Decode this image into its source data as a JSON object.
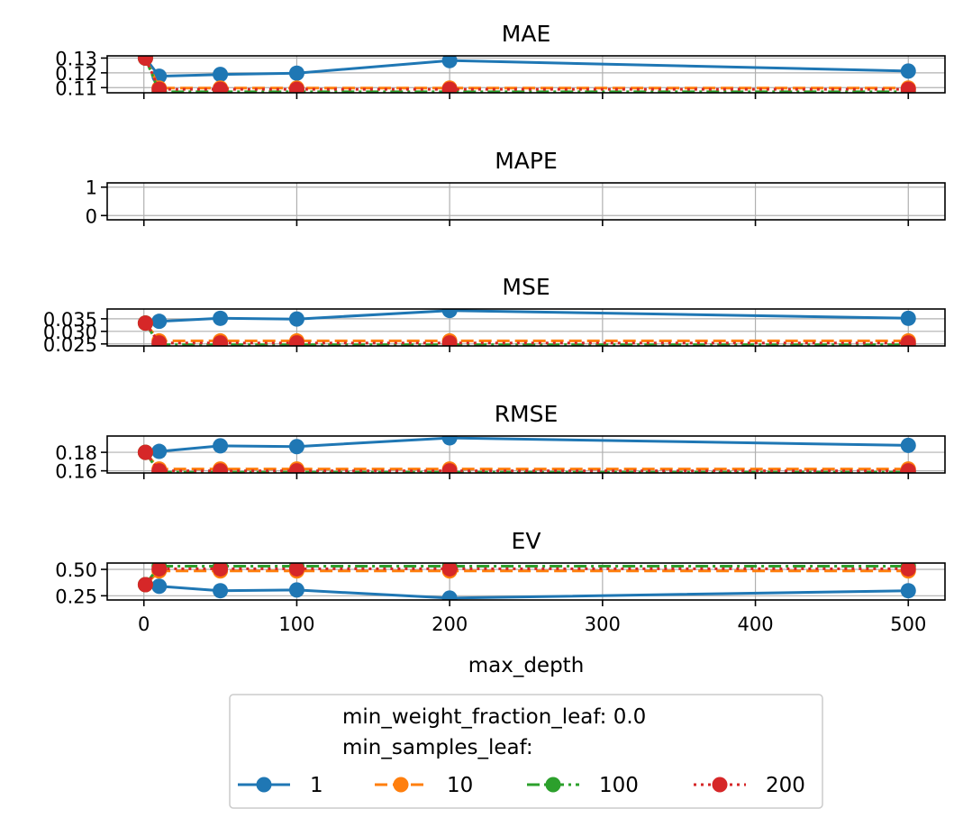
{
  "chart_data": {
    "type": "line",
    "xlabel": "max_depth",
    "x": [
      1,
      10,
      50,
      100,
      200,
      500
    ],
    "xlim": [
      -24,
      524
    ],
    "xticks": [
      0,
      100,
      200,
      300,
      400,
      500
    ],
    "xtick_labels": [
      "0",
      "100",
      "200",
      "300",
      "400",
      "500"
    ],
    "grid": true,
    "legend": {
      "placement": "bottom-center",
      "title_line1": "min_weight_fraction_leaf: 0.0",
      "title_line2": "min_samples_leaf:",
      "entries": [
        {
          "label": "1",
          "color": "#1f77b4",
          "style": "solid"
        },
        {
          "label": "10",
          "color": "#ff7f0e",
          "style": "dashed"
        },
        {
          "label": "100",
          "color": "#2ca02c",
          "style": "dashdot"
        },
        {
          "label": "200",
          "color": "#d62728",
          "style": "dotted"
        }
      ]
    },
    "panels": [
      {
        "title": "MAE",
        "ylim": [
          0.1065,
          0.1315
        ],
        "yticks": [
          0.11,
          0.12,
          0.13
        ],
        "ytick_labels": [
          "0.11",
          "0.12",
          "0.13"
        ],
        "series": [
          {
            "name": "1",
            "values": [
              0.13,
              0.1177,
              0.1189,
              0.1198,
              0.1283,
              0.1212
            ]
          },
          {
            "name": "10",
            "values": [
              0.13,
              0.1097,
              0.1097,
              0.1097,
              0.1097,
              0.1097
            ]
          },
          {
            "name": "100",
            "values": [
              0.13,
              0.1072,
              0.1072,
              0.1072,
              0.1072,
              0.1072
            ]
          },
          {
            "name": "200",
            "values": [
              0.13,
              0.1089,
              0.1089,
              0.1089,
              0.1089,
              0.1089
            ]
          }
        ]
      },
      {
        "title": "MAPE",
        "ylim": [
          -0.15,
          1.15
        ],
        "yticks": [
          0,
          1
        ],
        "ytick_labels": [
          "0",
          "1"
        ],
        "series": [
          {
            "name": "1",
            "values": []
          },
          {
            "name": "10",
            "values": []
          },
          {
            "name": "100",
            "values": []
          },
          {
            "name": "200",
            "values": []
          }
        ]
      },
      {
        "title": "MSE",
        "ylim": [
          0.0242,
          0.0389
        ],
        "yticks": [
          0.025,
          0.03,
          0.035
        ],
        "ytick_labels": [
          "0.025",
          "0.030",
          "0.035"
        ],
        "series": [
          {
            "name": "1",
            "values": [
              0.0333,
              0.034,
              0.0352,
              0.0349,
              0.0383,
              0.0352
            ]
          },
          {
            "name": "10",
            "values": [
              0.0333,
              0.0262,
              0.0262,
              0.0262,
              0.0262,
              0.0262
            ]
          },
          {
            "name": "100",
            "values": [
              0.0333,
              0.0247,
              0.0247,
              0.0247,
              0.0247,
              0.0247
            ]
          },
          {
            "name": "200",
            "values": [
              0.0333,
              0.0254,
              0.0254,
              0.0254,
              0.0254,
              0.0254
            ]
          }
        ]
      },
      {
        "title": "RMSE",
        "ylim": [
          0.1577,
          0.1976
        ],
        "yticks": [
          0.16,
          0.18
        ],
        "ytick_labels": [
          "0.16",
          "0.18"
        ],
        "series": [
          {
            "name": "1",
            "values": [
              0.18,
              0.181,
              0.187,
              0.1862,
              0.1956,
              0.1875
            ]
          },
          {
            "name": "10",
            "values": [
              0.18,
              0.162,
              0.162,
              0.162,
              0.162,
              0.162
            ]
          },
          {
            "name": "100",
            "values": [
              0.18,
              0.1585,
              0.1585,
              0.1585,
              0.1585,
              0.1585
            ]
          },
          {
            "name": "200",
            "values": [
              0.18,
              0.16,
              0.16,
              0.16,
              0.16,
              0.16
            ]
          }
        ]
      },
      {
        "title": "EV",
        "ylim": [
          0.21,
          0.56
        ],
        "yticks": [
          0.25,
          0.5
        ],
        "ytick_labels": [
          "0.25",
          "0.50"
        ],
        "series": [
          {
            "name": "1",
            "values": [
              0.355,
              0.34,
              0.298,
              0.305,
              0.228,
              0.298
            ]
          },
          {
            "name": "10",
            "values": [
              0.355,
              0.485,
              0.485,
              0.485,
              0.485,
              0.485
            ]
          },
          {
            "name": "100",
            "values": [
              0.355,
              0.53,
              0.53,
              0.53,
              0.53,
              0.53
            ]
          },
          {
            "name": "200",
            "values": [
              0.355,
              0.505,
              0.505,
              0.505,
              0.505,
              0.505
            ]
          }
        ]
      }
    ]
  }
}
